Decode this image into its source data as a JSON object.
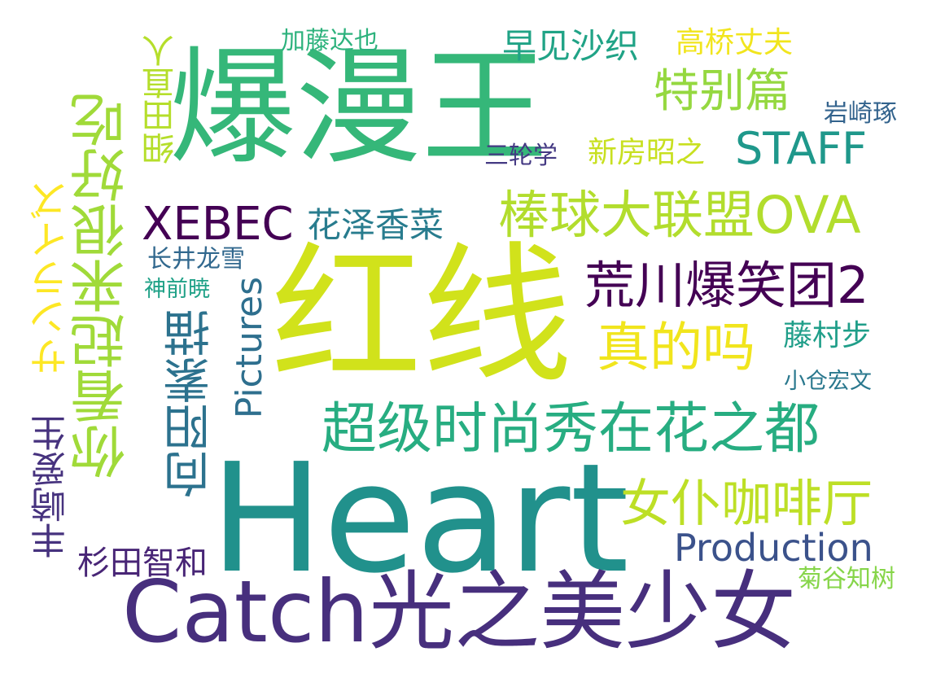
{
  "words": [
    {
      "text": "Heart",
      "color": "#21918c",
      "orientation": "horizontal"
    },
    {
      "text": "红线",
      "color": "#d1e21b",
      "orientation": "horizontal"
    },
    {
      "text": "爆漫王",
      "color": "#35b779",
      "orientation": "horizontal"
    },
    {
      "text": "Catch光之美少女",
      "color": "#472f7d",
      "orientation": "horizontal"
    },
    {
      "text": "你看起来很好吃",
      "color": "#a0da39",
      "orientation": "vertical"
    },
    {
      "text": "超级时尚秀在花之都",
      "color": "#27ad81",
      "orientation": "horizontal"
    },
    {
      "text": "荒川爆笑团2",
      "color": "#440154",
      "orientation": "horizontal"
    },
    {
      "text": "棒球大联盟OVA",
      "color": "#b2dd2d",
      "orientation": "horizontal"
    },
    {
      "text": "女仆咖啡厅",
      "color": "#bddf26",
      "orientation": "horizontal"
    },
    {
      "text": "真的吗",
      "color": "#f1e51d",
      "orientation": "horizontal"
    },
    {
      "text": "向阳素描",
      "color": "#2c728e",
      "orientation": "vertical"
    },
    {
      "text": "Production",
      "color": "#3b528b",
      "orientation": "horizontal"
    },
    {
      "text": "Pictures",
      "color": "#2e6f8e",
      "orientation": "vertical"
    },
    {
      "text": "特别篇",
      "color": "#95d840",
      "orientation": "horizontal"
    },
    {
      "text": "STAFF",
      "color": "#1f988b",
      "orientation": "horizontal"
    },
    {
      "text": "XEBEC",
      "color": "#440154",
      "orientation": "horizontal"
    },
    {
      "text": "サンライズ",
      "color": "#fde725",
      "orientation": "vertical"
    },
    {
      "text": "花泽香菜",
      "color": "#287c8e",
      "orientation": "horizontal"
    },
    {
      "text": "早见沙织",
      "color": "#20a386",
      "orientation": "horizontal"
    },
    {
      "text": "丰崎爱生",
      "color": "#46327e",
      "orientation": "vertical"
    },
    {
      "text": "杉田智和",
      "color": "#482576",
      "orientation": "horizontal"
    },
    {
      "text": "细田直人",
      "color": "#b5de2b",
      "orientation": "vertical"
    },
    {
      "text": "高桥丈夫",
      "color": "#f1e51d",
      "orientation": "horizontal"
    },
    {
      "text": "新房昭之",
      "color": "#c8e020",
      "orientation": "horizontal"
    },
    {
      "text": "藤村步",
      "color": "#1f9e89",
      "orientation": "horizontal"
    },
    {
      "text": "加藤达也",
      "color": "#2db27d",
      "orientation": "horizontal"
    },
    {
      "text": "岩崎琢",
      "color": "#33638d",
      "orientation": "horizontal"
    },
    {
      "text": "三轮学",
      "color": "#443983",
      "orientation": "horizontal"
    },
    {
      "text": "长井龙雪",
      "color": "#31688e",
      "orientation": "horizontal"
    },
    {
      "text": "神前暁",
      "color": "#1fa187",
      "orientation": "horizontal"
    },
    {
      "text": "小仓宏文",
      "color": "#2a788e",
      "orientation": "horizontal"
    },
    {
      "text": "菊谷知树",
      "color": "#86d549",
      "orientation": "horizontal"
    }
  ]
}
